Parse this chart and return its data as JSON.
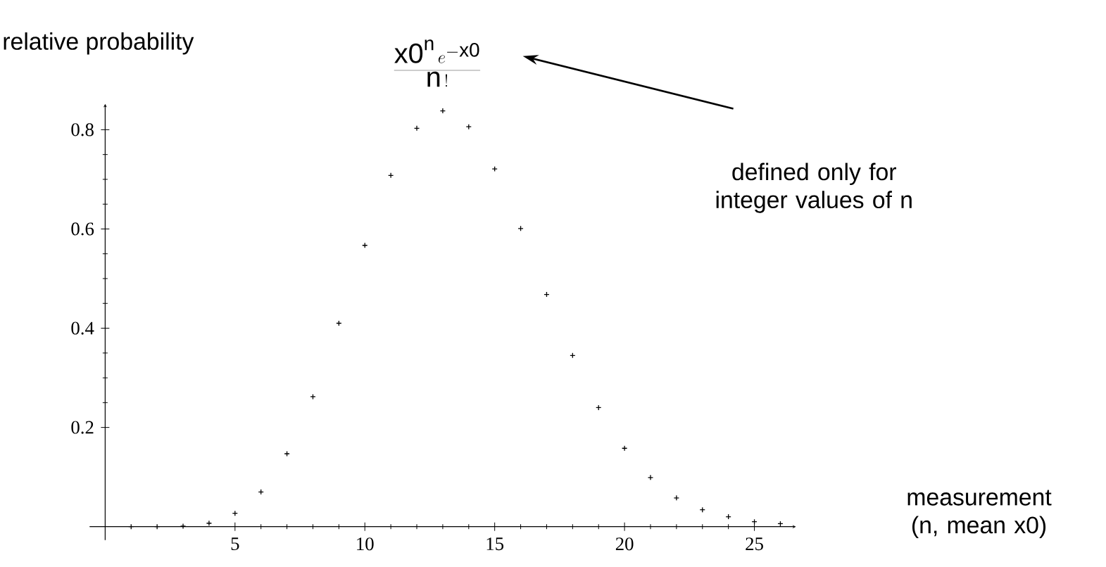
{
  "chart_data": {
    "type": "scatter",
    "xlabel": "measurement (n, mean x0)",
    "ylabel": "relative probability",
    "x": [
      1,
      2,
      3,
      4,
      5,
      6,
      7,
      8,
      9,
      10,
      11,
      12,
      13,
      14,
      15,
      16,
      17,
      18,
      19,
      20,
      21,
      22,
      23,
      24,
      25,
      26
    ],
    "values": [
      0.0,
      0.0,
      0.001,
      0.007,
      0.027,
      0.07,
      0.147,
      0.262,
      0.41,
      0.567,
      0.708,
      0.803,
      0.838,
      0.806,
      0.721,
      0.601,
      0.468,
      0.345,
      0.24,
      0.158,
      0.099,
      0.058,
      0.034,
      0.02,
      0.01,
      0.006
    ],
    "color": "#000000",
    "marker": "cross",
    "xlim": [
      -0.6,
      26.6
    ],
    "ylim": [
      -0.027,
      0.852
    ],
    "xticks": [
      5,
      10,
      15,
      20,
      25
    ],
    "yticks": [
      0.2,
      0.4,
      0.6,
      0.8
    ],
    "annotations": [
      "\\frac{\\mathrm{x0}^{\\mathrm{n}}\\,e^{-\\mathrm{x0}}}{\\mathrm{n}\\,!}",
      "defined only for integer values of n"
    ]
  }
}
